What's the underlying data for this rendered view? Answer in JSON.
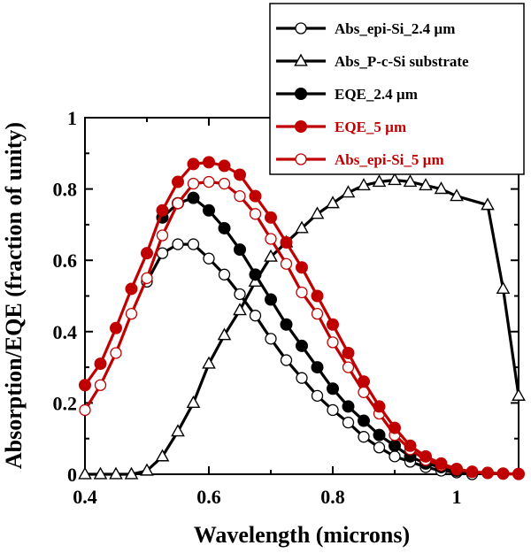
{
  "chart_data": {
    "type": "line",
    "title": "",
    "xlabel": "Wavelength (microns)",
    "ylabel": "Absorption/EQE (fraction of unity)",
    "xlim": [
      0.4,
      1.1
    ],
    "ylim": [
      0,
      1
    ],
    "x_ticks": [
      "0.4",
      "0.6",
      "0.8",
      "1"
    ],
    "y_ticks": [
      "0",
      "0.2",
      "0.4",
      "0.6",
      "0.8",
      "1"
    ],
    "grid": false,
    "legend_position": "top-right",
    "series": [
      {
        "name": "Abs_epi-Si_2.4 µm",
        "color": "#000000",
        "marker": "open-circle",
        "x": [
          0.5,
          0.525,
          0.55,
          0.575,
          0.6,
          0.625,
          0.65,
          0.675,
          0.7,
          0.725,
          0.75,
          0.775,
          0.8,
          0.825,
          0.85,
          0.875,
          0.9,
          0.925,
          0.95,
          0.975,
          1.0,
          1.025
        ],
        "y": [
          0.54,
          0.62,
          0.645,
          0.645,
          0.605,
          0.56,
          0.505,
          0.445,
          0.38,
          0.32,
          0.27,
          0.22,
          0.18,
          0.145,
          0.105,
          0.075,
          0.05,
          0.035,
          0.02,
          0.01,
          0.005,
          0.0
        ]
      },
      {
        "name": "Abs_P-c-Si substrate",
        "color": "#000000",
        "marker": "open-triangle",
        "x": [
          0.4,
          0.425,
          0.45,
          0.475,
          0.5,
          0.525,
          0.55,
          0.575,
          0.6,
          0.625,
          0.65,
          0.675,
          0.7,
          0.725,
          0.75,
          0.775,
          0.8,
          0.825,
          0.85,
          0.875,
          0.9,
          0.925,
          0.95,
          0.975,
          1.0,
          1.05,
          1.075,
          1.1
        ],
        "y": [
          0.0,
          0.0,
          0.0,
          0.0,
          0.01,
          0.05,
          0.12,
          0.2,
          0.31,
          0.39,
          0.46,
          0.54,
          0.61,
          0.65,
          0.69,
          0.73,
          0.76,
          0.79,
          0.81,
          0.82,
          0.825,
          0.82,
          0.81,
          0.8,
          0.78,
          0.755,
          0.52,
          0.22
        ]
      },
      {
        "name": "EQE_2.4 µm",
        "color": "#000000",
        "marker": "filled-circle",
        "x": [
          0.525,
          0.55,
          0.575,
          0.6,
          0.625,
          0.65,
          0.675,
          0.7,
          0.725,
          0.75,
          0.775,
          0.8,
          0.825,
          0.85,
          0.875,
          0.9,
          0.925,
          0.95,
          0.975,
          1.0
        ],
        "y": [
          0.72,
          0.76,
          0.775,
          0.74,
          0.69,
          0.63,
          0.56,
          0.49,
          0.42,
          0.36,
          0.3,
          0.24,
          0.19,
          0.15,
          0.11,
          0.08,
          0.05,
          0.03,
          0.02,
          0.01
        ]
      },
      {
        "name": "EQE_5 µm",
        "color": "#c00000",
        "marker": "filled-circle",
        "x": [
          0.4,
          0.425,
          0.45,
          0.475,
          0.5,
          0.525,
          0.55,
          0.575,
          0.6,
          0.625,
          0.65,
          0.675,
          0.7,
          0.725,
          0.75,
          0.775,
          0.8,
          0.825,
          0.85,
          0.875,
          0.9,
          0.925,
          0.95,
          0.975,
          1.0,
          1.025,
          1.05,
          1.075,
          1.1
        ],
        "y": [
          0.25,
          0.31,
          0.41,
          0.52,
          0.62,
          0.74,
          0.82,
          0.87,
          0.875,
          0.865,
          0.84,
          0.78,
          0.72,
          0.65,
          0.58,
          0.5,
          0.42,
          0.34,
          0.26,
          0.19,
          0.13,
          0.08,
          0.05,
          0.03,
          0.015,
          0.007,
          0.004,
          0.002,
          0.001
        ]
      },
      {
        "name": "Abs_epi-Si_5 µm",
        "color": "#c00000",
        "marker": "open-circle",
        "x": [
          0.4,
          0.425,
          0.45,
          0.475,
          0.5,
          0.525,
          0.55,
          0.575,
          0.6,
          0.625,
          0.65,
          0.675,
          0.7,
          0.725,
          0.75,
          0.775,
          0.8,
          0.825,
          0.85,
          0.875,
          0.9,
          0.925,
          0.95,
          0.975,
          1.0,
          1.025,
          1.05,
          1.075,
          1.1
        ],
        "y": [
          0.18,
          0.25,
          0.34,
          0.45,
          0.55,
          0.67,
          0.76,
          0.815,
          0.82,
          0.815,
          0.78,
          0.73,
          0.66,
          0.59,
          0.51,
          0.45,
          0.37,
          0.3,
          0.23,
          0.17,
          0.11,
          0.07,
          0.04,
          0.025,
          0.013,
          0.006,
          0.003,
          0.001,
          0.0
        ]
      }
    ]
  }
}
